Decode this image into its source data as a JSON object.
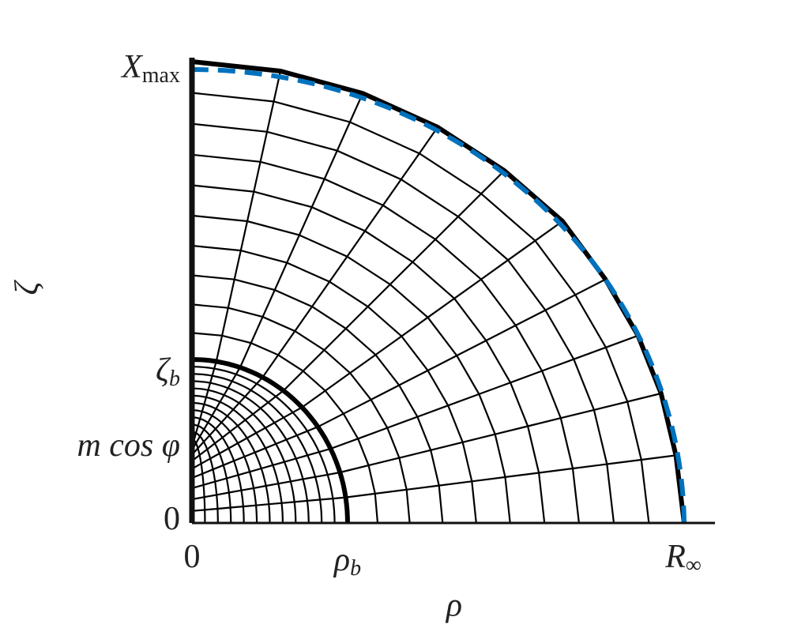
{
  "axes": {
    "x_label": "ρ",
    "y_label": "ζ",
    "x_ticks": [
      {
        "base": "0"
      },
      {
        "base": "ρ",
        "sub": "b"
      },
      {
        "base": "R",
        "sub": "∞"
      }
    ],
    "y_ticks": [
      {
        "base": "0"
      },
      {
        "base": "m cos φ"
      },
      {
        "base": "ζ",
        "sub": "b"
      },
      {
        "base": "X",
        "sub": "max"
      }
    ]
  }
}
